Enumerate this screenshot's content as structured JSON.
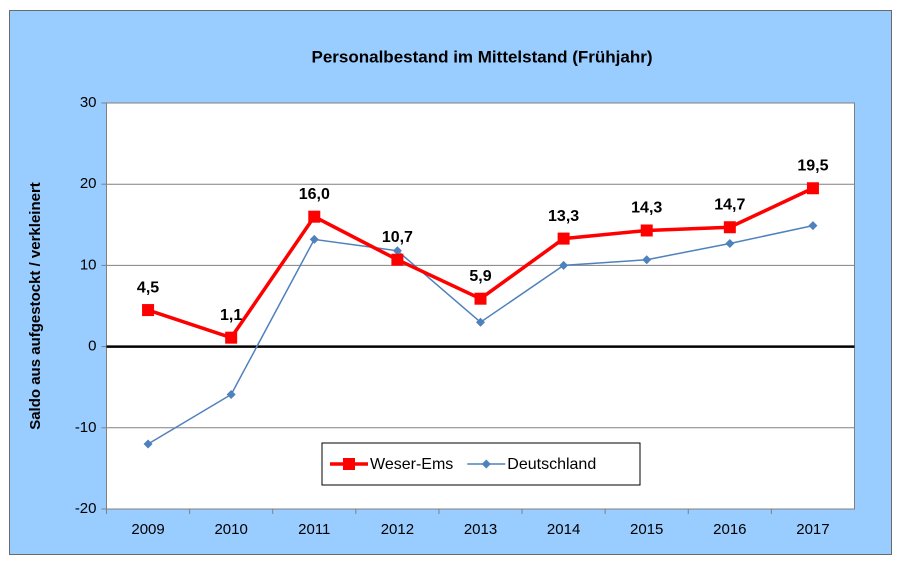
{
  "chart_data": {
    "type": "line",
    "title": "Personalbestand im Mittelstand (Frühjahr)",
    "y_label": "Saldo aus aufgestockt / verkleinert",
    "categories": [
      "2009",
      "2010",
      "2011",
      "2012",
      "2013",
      "2014",
      "2015",
      "2016",
      "2017"
    ],
    "series": [
      {
        "name": "Weser-Ems",
        "color": "#ff0000",
        "values": [
          4.5,
          1.1,
          16.0,
          10.7,
          5.9,
          13.3,
          14.3,
          14.7,
          19.5
        ],
        "value_labels": [
          "4,5",
          "1,1",
          "16,0",
          "10,7",
          "5,9",
          "13,3",
          "14,3",
          "14,7",
          "19,5"
        ]
      },
      {
        "name": "Deutschland",
        "color": "#4f81bd",
        "values": [
          -12,
          -5.9,
          13.2,
          11.8,
          3.0,
          10.0,
          10.7,
          12.7,
          14.9
        ]
      }
    ],
    "ylim": [
      -20,
      30
    ],
    "yticks": [
      -20,
      -10,
      0,
      10,
      20,
      30
    ],
    "grid": true,
    "legend": "bottom",
    "background": "#99ccff"
  }
}
